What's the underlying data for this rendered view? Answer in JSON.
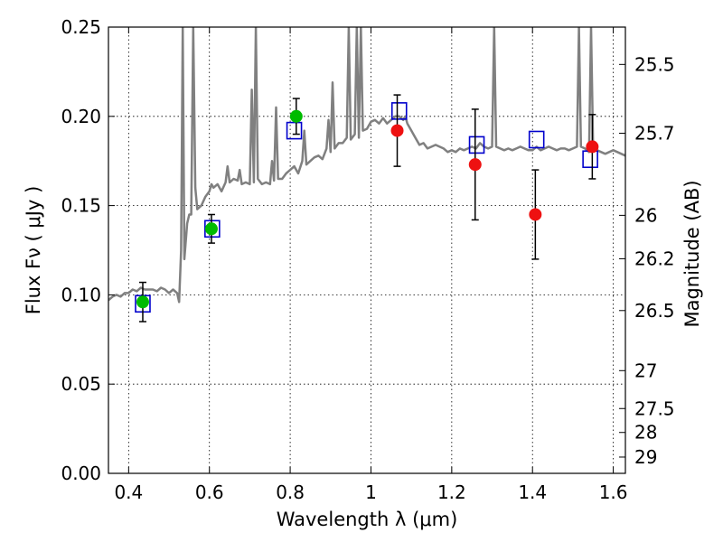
{
  "chart_data": {
    "type": "scatter",
    "title": "",
    "xlabel": "Wavelength  λ (μm)",
    "ylabel": "Flux  Fν  ( μJy )",
    "ylabel_right": "Magnitude (AB)",
    "xlim": [
      0.35,
      1.63
    ],
    "ylim": [
      0.0,
      0.25
    ],
    "grid": true,
    "x_ticks": [
      0.4,
      0.6,
      0.8,
      1.0,
      1.2,
      1.4,
      1.6
    ],
    "x_tick_labels": [
      "0.4",
      "0.6",
      "0.8",
      "1",
      "1.2",
      "1.4",
      "1.6"
    ],
    "y_ticks": [
      0.0,
      0.05,
      0.1,
      0.15,
      0.2,
      0.25
    ],
    "y_tick_labels": [
      "0.00",
      "0.05",
      "0.10",
      "0.15",
      "0.20",
      "0.25"
    ],
    "magnitude_ticks": [
      "25.5",
      "25.7",
      "26",
      "26.2",
      "26.5",
      "27",
      "27.5",
      "28",
      "29"
    ],
    "colors": {
      "model": "#808080",
      "optical_points": "#00bb00",
      "nir_points": "#ee1111",
      "model_flux_boxes": "#0000cc",
      "errorbars": "#000000"
    },
    "series": [
      {
        "kind": "line",
        "points": [
          [
            0.35,
            0.097
          ],
          [
            0.36,
            0.099
          ],
          [
            0.37,
            0.1
          ],
          [
            0.38,
            0.099
          ],
          [
            0.39,
            0.101
          ],
          [
            0.4,
            0.101
          ],
          [
            0.41,
            0.103
          ],
          [
            0.42,
            0.102
          ],
          [
            0.43,
            0.104
          ],
          [
            0.44,
            0.103
          ],
          [
            0.45,
            0.103
          ],
          [
            0.46,
            0.103
          ],
          [
            0.47,
            0.102
          ],
          [
            0.48,
            0.104
          ],
          [
            0.49,
            0.103
          ],
          [
            0.5,
            0.101
          ],
          [
            0.51,
            0.103
          ],
          [
            0.52,
            0.101
          ],
          [
            0.525,
            0.096
          ],
          [
            0.53,
            0.125
          ],
          [
            0.534,
            0.25
          ],
          [
            0.538,
            0.12
          ],
          [
            0.545,
            0.14
          ],
          [
            0.55,
            0.145
          ],
          [
            0.555,
            0.145
          ],
          [
            0.56,
            0.25
          ],
          [
            0.565,
            0.16
          ],
          [
            0.57,
            0.148
          ],
          [
            0.58,
            0.15
          ],
          [
            0.59,
            0.155
          ],
          [
            0.6,
            0.158
          ],
          [
            0.605,
            0.162
          ],
          [
            0.61,
            0.16
          ],
          [
            0.62,
            0.162
          ],
          [
            0.63,
            0.158
          ],
          [
            0.64,
            0.163
          ],
          [
            0.645,
            0.172
          ],
          [
            0.65,
            0.163
          ],
          [
            0.66,
            0.165
          ],
          [
            0.67,
            0.164
          ],
          [
            0.675,
            0.17
          ],
          [
            0.68,
            0.162
          ],
          [
            0.69,
            0.163
          ],
          [
            0.7,
            0.162
          ],
          [
            0.705,
            0.215
          ],
          [
            0.71,
            0.163
          ],
          [
            0.715,
            0.25
          ],
          [
            0.72,
            0.165
          ],
          [
            0.73,
            0.162
          ],
          [
            0.74,
            0.163
          ],
          [
            0.75,
            0.162
          ],
          [
            0.755,
            0.175
          ],
          [
            0.76,
            0.164
          ],
          [
            0.765,
            0.205
          ],
          [
            0.77,
            0.165
          ],
          [
            0.78,
            0.165
          ],
          [
            0.79,
            0.168
          ],
          [
            0.8,
            0.17
          ],
          [
            0.81,
            0.172
          ],
          [
            0.82,
            0.168
          ],
          [
            0.83,
            0.175
          ],
          [
            0.835,
            0.192
          ],
          [
            0.84,
            0.173
          ],
          [
            0.85,
            0.175
          ],
          [
            0.86,
            0.177
          ],
          [
            0.87,
            0.178
          ],
          [
            0.88,
            0.176
          ],
          [
            0.89,
            0.182
          ],
          [
            0.895,
            0.198
          ],
          [
            0.9,
            0.18
          ],
          [
            0.905,
            0.219
          ],
          [
            0.91,
            0.182
          ],
          [
            0.92,
            0.185
          ],
          [
            0.93,
            0.185
          ],
          [
            0.94,
            0.188
          ],
          [
            0.945,
            0.25
          ],
          [
            0.95,
            0.187
          ],
          [
            0.96,
            0.19
          ],
          [
            0.965,
            0.25
          ],
          [
            0.97,
            0.188
          ],
          [
            0.975,
            0.25
          ],
          [
            0.98,
            0.192
          ],
          [
            0.99,
            0.193
          ],
          [
            1.0,
            0.197
          ],
          [
            1.01,
            0.198
          ],
          [
            1.02,
            0.196
          ],
          [
            1.03,
            0.199
          ],
          [
            1.04,
            0.196
          ],
          [
            1.05,
            0.198
          ],
          [
            1.06,
            0.2
          ],
          [
            1.07,
            0.2
          ],
          [
            1.08,
            0.198
          ],
          [
            1.085,
            0.2
          ],
          [
            1.09,
            0.196
          ],
          [
            1.1,
            0.192
          ],
          [
            1.11,
            0.188
          ],
          [
            1.12,
            0.184
          ],
          [
            1.13,
            0.185
          ],
          [
            1.14,
            0.182
          ],
          [
            1.15,
            0.183
          ],
          [
            1.16,
            0.184
          ],
          [
            1.17,
            0.183
          ],
          [
            1.18,
            0.182
          ],
          [
            1.19,
            0.18
          ],
          [
            1.2,
            0.181
          ],
          [
            1.21,
            0.18
          ],
          [
            1.22,
            0.182
          ],
          [
            1.23,
            0.181
          ],
          [
            1.24,
            0.182
          ],
          [
            1.25,
            0.183
          ],
          [
            1.26,
            0.182
          ],
          [
            1.27,
            0.185
          ],
          [
            1.28,
            0.183
          ],
          [
            1.29,
            0.182
          ],
          [
            1.3,
            0.183
          ],
          [
            1.305,
            0.25
          ],
          [
            1.31,
            0.183
          ],
          [
            1.32,
            0.182
          ],
          [
            1.33,
            0.181
          ],
          [
            1.34,
            0.182
          ],
          [
            1.35,
            0.181
          ],
          [
            1.36,
            0.182
          ],
          [
            1.37,
            0.183
          ],
          [
            1.38,
            0.182
          ],
          [
            1.39,
            0.181
          ],
          [
            1.4,
            0.181
          ],
          [
            1.41,
            0.183
          ],
          [
            1.42,
            0.181
          ],
          [
            1.43,
            0.182
          ],
          [
            1.44,
            0.183
          ],
          [
            1.45,
            0.182
          ],
          [
            1.46,
            0.181
          ],
          [
            1.47,
            0.182
          ],
          [
            1.48,
            0.182
          ],
          [
            1.49,
            0.181
          ],
          [
            1.5,
            0.182
          ],
          [
            1.51,
            0.183
          ],
          [
            1.515,
            0.25
          ],
          [
            1.52,
            0.183
          ],
          [
            1.53,
            0.182
          ],
          [
            1.54,
            0.18
          ],
          [
            1.545,
            0.25
          ],
          [
            1.55,
            0.182
          ],
          [
            1.56,
            0.181
          ],
          [
            1.57,
            0.18
          ],
          [
            1.58,
            0.179
          ],
          [
            1.59,
            0.18
          ],
          [
            1.6,
            0.181
          ],
          [
            1.61,
            0.18
          ],
          [
            1.62,
            0.179
          ],
          [
            1.63,
            0.178
          ]
        ]
      },
      {
        "kind": "box",
        "points": [
          [
            0.435,
            0.095
          ],
          [
            0.607,
            0.137
          ],
          [
            0.81,
            0.192
          ],
          [
            1.07,
            0.203
          ],
          [
            1.262,
            0.184
          ],
          [
            1.41,
            0.187
          ],
          [
            1.543,
            0.176
          ]
        ]
      },
      {
        "kind": "point",
        "points": [
          {
            "x": 0.435,
            "y": 0.096,
            "err": 0.011
          },
          {
            "x": 0.605,
            "y": 0.137,
            "err": 0.008
          },
          {
            "x": 0.815,
            "y": 0.2,
            "err": 0.01
          }
        ]
      },
      {
        "kind": "point",
        "points": [
          {
            "x": 1.065,
            "y": 0.192,
            "err": 0.02
          },
          {
            "x": 1.258,
            "y": 0.173,
            "err": 0.031
          },
          {
            "x": 1.407,
            "y": 0.145,
            "err": 0.025
          },
          {
            "x": 1.548,
            "y": 0.183,
            "err": 0.018
          }
        ]
      }
    ]
  }
}
